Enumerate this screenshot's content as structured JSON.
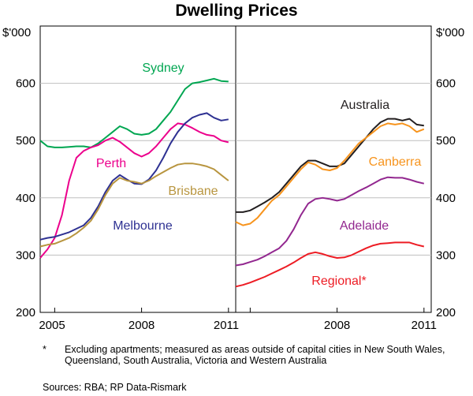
{
  "footnote": {
    "mark": "*",
    "text": "Excluding apartments; measured as areas outside of capital cities in New South Wales, Queensland, South Australia, Victoria and Western Australia"
  },
  "sources": "Sources: RBA; RP Data-Rismark",
  "chart_data": [
    {
      "type": "line",
      "title": "Dwelling Prices",
      "ylabel": "$'000",
      "ylim": [
        200,
        700
      ],
      "yticks": [
        "200",
        "300",
        "400",
        "500",
        "600"
      ],
      "xlim": [
        2004.5,
        2011.25
      ],
      "xticks": [
        {
          "x": 2005,
          "label": "2005"
        },
        {
          "x": 2008,
          "label": "2008"
        },
        {
          "x": 2011,
          "label": "2011"
        }
      ],
      "series": [
        {
          "name": "Sydney",
          "color": "#00a651",
          "x": [
            2004.5,
            2004.75,
            2005,
            2005.25,
            2005.5,
            2005.75,
            2006,
            2006.25,
            2006.5,
            2006.75,
            2007,
            2007.25,
            2007.5,
            2007.75,
            2008,
            2008.25,
            2008.5,
            2008.75,
            2009,
            2009.25,
            2009.5,
            2009.75,
            2010,
            2010.25,
            2010.5,
            2010.75,
            2011
          ],
          "values": [
            500,
            490,
            488,
            488,
            489,
            490,
            490,
            488,
            495,
            505,
            515,
            525,
            520,
            512,
            510,
            512,
            520,
            535,
            550,
            570,
            590,
            600,
            602,
            605,
            608,
            604,
            603
          ]
        },
        {
          "name": "Perth",
          "color": "#ec008c",
          "x": [
            2004.5,
            2004.75,
            2005,
            2005.25,
            2005.5,
            2005.75,
            2006,
            2006.25,
            2006.5,
            2006.75,
            2007,
            2007.25,
            2007.5,
            2007.75,
            2008,
            2008.25,
            2008.5,
            2008.75,
            2009,
            2009.25,
            2009.5,
            2009.75,
            2010,
            2010.25,
            2010.5,
            2010.75,
            2011
          ],
          "values": [
            295,
            310,
            330,
            370,
            430,
            470,
            482,
            488,
            492,
            500,
            505,
            498,
            488,
            478,
            472,
            478,
            490,
            505,
            520,
            530,
            528,
            522,
            515,
            510,
            508,
            500,
            497
          ]
        },
        {
          "name": "Melbourne",
          "color": "#2e3192",
          "x": [
            2004.5,
            2004.75,
            2005,
            2005.25,
            2005.5,
            2005.75,
            2006,
            2006.25,
            2006.5,
            2006.75,
            2007,
            2007.25,
            2007.5,
            2007.75,
            2008,
            2008.25,
            2008.5,
            2008.75,
            2009,
            2009.25,
            2009.5,
            2009.75,
            2010,
            2010.25,
            2010.5,
            2010.75,
            2011
          ],
          "values": [
            327,
            330,
            332,
            336,
            340,
            346,
            352,
            365,
            385,
            410,
            430,
            440,
            432,
            425,
            424,
            432,
            448,
            470,
            495,
            515,
            530,
            540,
            545,
            548,
            540,
            535,
            537
          ]
        },
        {
          "name": "Brisbane",
          "color": "#b8953f",
          "x": [
            2004.5,
            2004.75,
            2005,
            2005.25,
            2005.5,
            2005.75,
            2006,
            2006.25,
            2006.5,
            2006.75,
            2007,
            2007.25,
            2007.5,
            2007.75,
            2008,
            2008.25,
            2008.5,
            2008.75,
            2009,
            2009.25,
            2009.5,
            2009.75,
            2010,
            2010.25,
            2010.5,
            2010.75,
            2011
          ],
          "values": [
            315,
            318,
            320,
            325,
            330,
            338,
            348,
            360,
            380,
            405,
            425,
            435,
            430,
            428,
            425,
            430,
            438,
            445,
            452,
            458,
            460,
            460,
            458,
            455,
            450,
            440,
            430
          ]
        },
        {
          "name": "Australia",
          "color": "#231f20",
          "x": [
            2004.5,
            2004.75,
            2005,
            2005.25,
            2005.5,
            2005.75,
            2006,
            2006.25,
            2006.5,
            2006.75,
            2007,
            2007.25,
            2007.5,
            2007.75,
            2008,
            2008.25,
            2008.5,
            2008.75,
            2009,
            2009.25,
            2009.5,
            2009.75,
            2010,
            2010.25,
            2010.5,
            2010.75,
            2011
          ],
          "values": [
            375,
            375,
            378,
            385,
            392,
            400,
            410,
            425,
            440,
            455,
            465,
            465,
            460,
            455,
            455,
            460,
            475,
            490,
            505,
            520,
            532,
            538,
            538,
            535,
            538,
            528,
            526
          ]
        },
        {
          "name": "Canberra",
          "color": "#f7941d",
          "x": [
            2004.5,
            2004.75,
            2005,
            2005.25,
            2005.5,
            2005.75,
            2006,
            2006.25,
            2006.5,
            2006.75,
            2007,
            2007.25,
            2007.5,
            2007.75,
            2008,
            2008.25,
            2008.5,
            2008.75,
            2009,
            2009.25,
            2009.5,
            2009.75,
            2010,
            2010.25,
            2010.5,
            2010.75,
            2011
          ],
          "values": [
            358,
            352,
            355,
            365,
            380,
            395,
            405,
            420,
            435,
            450,
            462,
            458,
            450,
            448,
            452,
            465,
            480,
            495,
            505,
            515,
            525,
            530,
            528,
            530,
            525,
            515,
            520
          ]
        },
        {
          "name": "Adelaide",
          "color": "#92278f",
          "x": [
            2004.5,
            2004.75,
            2005,
            2005.25,
            2005.5,
            2005.75,
            2006,
            2006.25,
            2006.5,
            2006.75,
            2007,
            2007.25,
            2007.5,
            2007.75,
            2008,
            2008.25,
            2008.5,
            2008.75,
            2009,
            2009.25,
            2009.5,
            2009.75,
            2010,
            2010.25,
            2010.5,
            2010.75,
            2011
          ],
          "values": [
            282,
            284,
            288,
            292,
            298,
            305,
            312,
            325,
            345,
            370,
            390,
            398,
            400,
            398,
            395,
            398,
            405,
            412,
            418,
            425,
            432,
            436,
            435,
            435,
            432,
            428,
            425
          ]
        },
        {
          "name": "Regional*",
          "color": "#ed1c24",
          "x": [
            2004.5,
            2004.75,
            2005,
            2005.25,
            2005.5,
            2005.75,
            2006,
            2006.25,
            2006.5,
            2006.75,
            2007,
            2007.25,
            2007.5,
            2007.75,
            2008,
            2008.25,
            2008.5,
            2008.75,
            2009,
            2009.25,
            2009.5,
            2009.75,
            2010,
            2010.25,
            2010.5,
            2010.75,
            2011
          ],
          "values": [
            245,
            248,
            252,
            257,
            262,
            268,
            274,
            280,
            287,
            295,
            302,
            305,
            302,
            298,
            295,
            296,
            300,
            306,
            312,
            317,
            320,
            321,
            322,
            322,
            322,
            318,
            315
          ]
        }
      ],
      "panels": [
        {
          "side": "left",
          "series": [
            "Sydney",
            "Perth",
            "Melbourne",
            "Brisbane"
          ],
          "labels": [
            {
              "text": "Sydney",
              "series": "Sydney"
            },
            {
              "text": "Perth",
              "series": "Perth"
            },
            {
              "text": "Melbourne",
              "series": "Melbourne"
            },
            {
              "text": "Brisbane",
              "series": "Brisbane"
            }
          ]
        },
        {
          "side": "right",
          "series": [
            "Australia",
            "Canberra",
            "Adelaide",
            "Regional*"
          ],
          "labels": [
            {
              "text": "Australia",
              "series": "Australia"
            },
            {
              "text": "Canberra",
              "series": "Canberra"
            },
            {
              "text": "Adelaide",
              "series": "Adelaide"
            },
            {
              "text": "Regional*",
              "series": "Regional*"
            }
          ]
        }
      ]
    }
  ]
}
